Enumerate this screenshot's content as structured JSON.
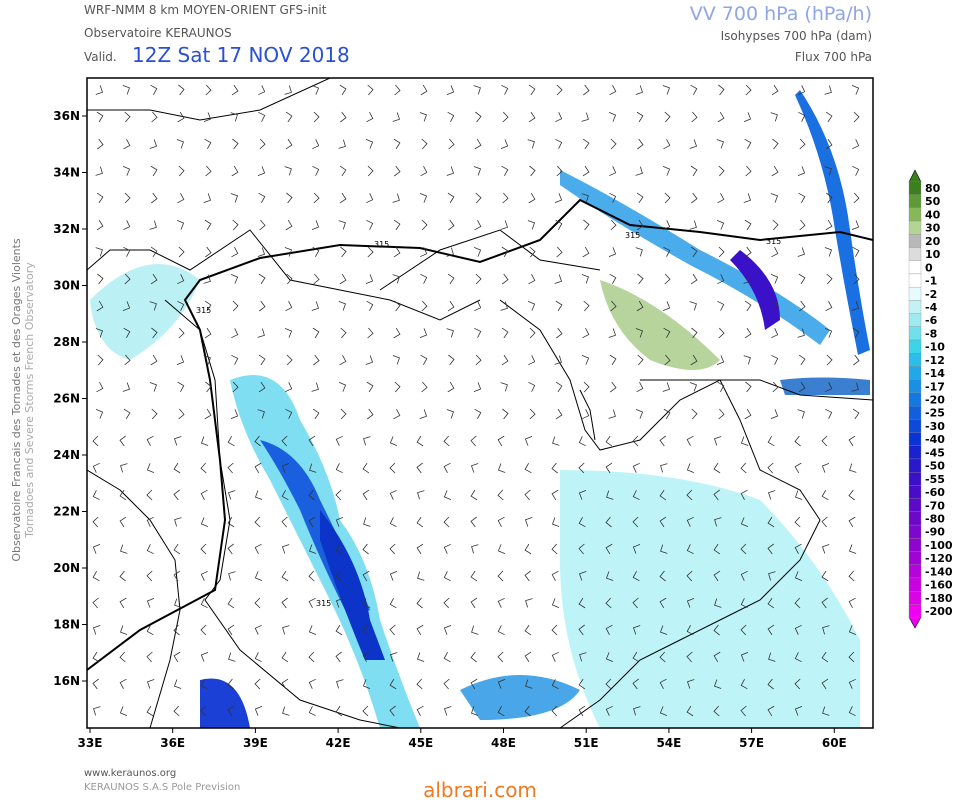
{
  "header": {
    "model": "WRF-NMM 8 km MOYEN-ORIENT   GFS-init",
    "observatory": "Observatoire KERAUNOS",
    "valid_label": "Valid.",
    "valid_time": "12Z Sat 17 NOV 2018",
    "parameter": "VV 700 hPa (hPa/h)",
    "isohypses": "Isohypses 700 hPa (dam)",
    "flux": "Flux 700 hPa"
  },
  "side_text": [
    "Observatoire Francais des Tornades et des Orages Violents",
    "Tornadoes and Severe Storms French Observatory"
  ],
  "map": {
    "lat_labels": [
      "36N",
      "34N",
      "32N",
      "30N",
      "28N",
      "26N",
      "24N",
      "22N",
      "20N",
      "18N",
      "16N"
    ],
    "lon_labels": [
      "33E",
      "36E",
      "39E",
      "42E",
      "45E",
      "48E",
      "51E",
      "54E",
      "57E",
      "60E"
    ],
    "contour_labels": [
      "315",
      "315",
      "315",
      "315",
      "315"
    ]
  },
  "colorbar": {
    "levels": [
      80,
      50,
      40,
      30,
      20,
      10,
      0,
      -1,
      -2,
      -4,
      -6,
      -8,
      -10,
      -12,
      -14,
      -17,
      -20,
      -25,
      -30,
      -40,
      -45,
      -50,
      -55,
      -60,
      -70,
      -80,
      -90,
      -100,
      -120,
      -140,
      -160,
      -180,
      -200
    ],
    "colors": [
      "#3b7f1f",
      "#5f9a36",
      "#86b85a",
      "#b4d494",
      "#b8b8b8",
      "#dcdcdc",
      "#ffffff",
      "#ffffff",
      "#e6fbfb",
      "#c4f2f4",
      "#9eeaf0",
      "#6fe0ec",
      "#3dd4ea",
      "#2cbde8",
      "#22a8e6",
      "#1a90e4",
      "#1478e2",
      "#1060de",
      "#0c4ada",
      "#0a34d6",
      "#1a22d0",
      "#2a18cc",
      "#3a10c8",
      "#4a0cc8",
      "#5c0ac8",
      "#6c08ca",
      "#7c08cc",
      "#8e06ce",
      "#a004d4",
      "#b404da",
      "#c802e0",
      "#dc02e8",
      "#f000f0"
    ]
  },
  "footer": {
    "site": "www.keraunos.org",
    "company": "KERAUNOS S.A.S Pole Prevision",
    "watermark": "albrari.com"
  }
}
